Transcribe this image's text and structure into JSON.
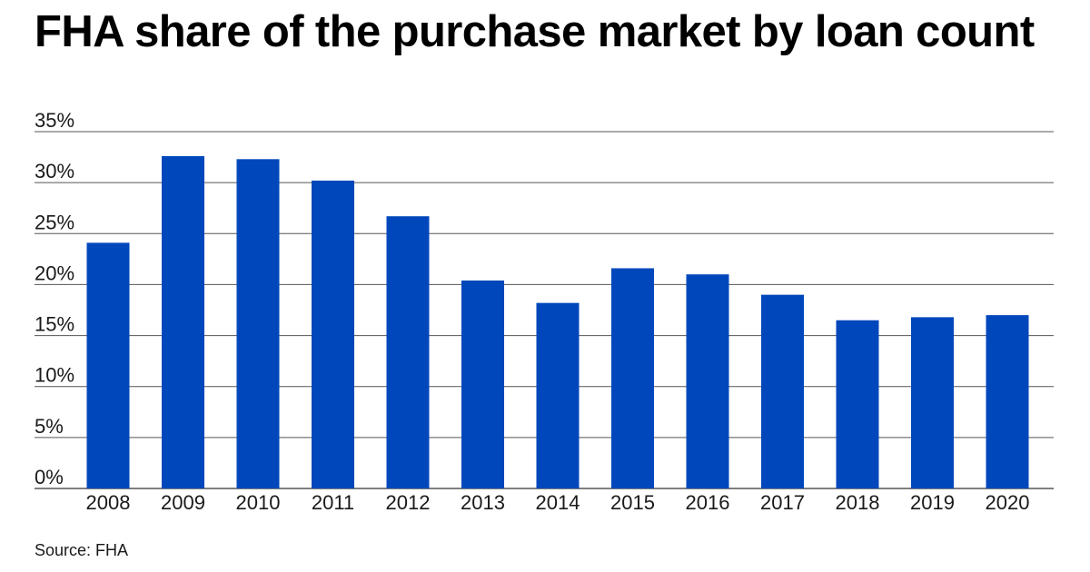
{
  "title": "FHA share of the purchase market by loan count",
  "source": "Source: FHA",
  "colors": {
    "bar": "#0047bb",
    "grid": "#555555",
    "text": "#1a1a1a"
  },
  "chart_data": {
    "type": "bar",
    "title": "FHA share of the purchase market by loan count",
    "xlabel": "",
    "ylabel": "",
    "categories": [
      "2008",
      "2009",
      "2010",
      "2011",
      "2012",
      "2013",
      "2014",
      "2015",
      "2016",
      "2017",
      "2018",
      "2019",
      "2020"
    ],
    "values": [
      24.1,
      32.6,
      32.3,
      30.2,
      26.7,
      20.4,
      18.2,
      21.6,
      21.0,
      19.0,
      16.5,
      16.8,
      17.0
    ],
    "ylim": [
      0,
      35
    ],
    "yticks": [
      0,
      5,
      10,
      15,
      20,
      25,
      30,
      35
    ],
    "ytick_labels": [
      "0%",
      "5%",
      "10%",
      "15%",
      "20%",
      "25%",
      "30%",
      "35%"
    ],
    "grid": true,
    "legend": "none"
  }
}
